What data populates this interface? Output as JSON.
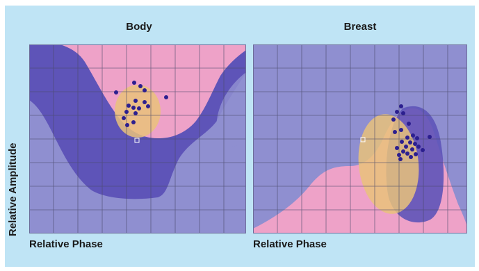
{
  "figure": {
    "y_axis_label": "Relative Amplitude",
    "panels": [
      {
        "id": "body",
        "title": "Body",
        "x_axis_label": "Relative Phase"
      },
      {
        "id": "breast",
        "title": "Breast",
        "x_axis_label": "Relative Phase"
      }
    ]
  },
  "colors": {
    "background": "#bfe4f5",
    "region_light_purple": "#8f8fd0",
    "region_dark_purple": "#5e54b8",
    "region_pink": "#eea2c8",
    "ellipse_yellow": "#e9c27a",
    "points": "#2c1f8f",
    "grid": "#4a4a6a"
  }
}
